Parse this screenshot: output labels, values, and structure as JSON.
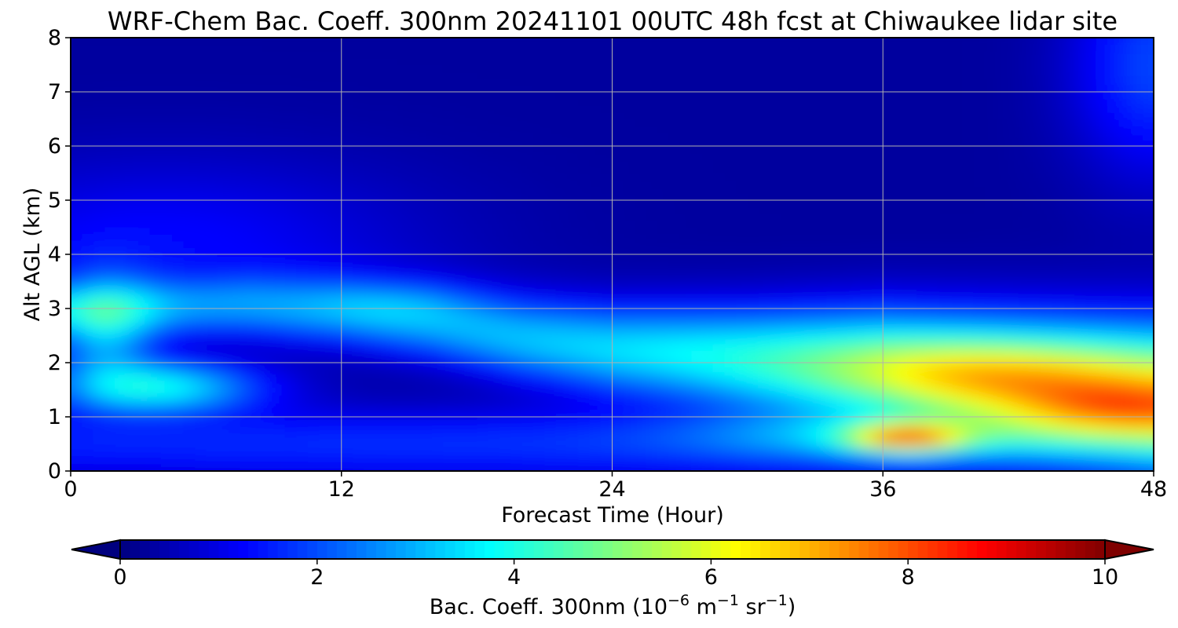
{
  "chart_data": {
    "type": "heatmap",
    "title": "WRF-Chem Bac. Coeff. 300nm  20241101 00UTC 48h fcst at Chiwaukee lidar site",
    "xlabel": "Forecast Time (Hour)",
    "ylabel": "Alt AGL (km)",
    "xlim": [
      0,
      48
    ],
    "ylim": [
      0,
      8
    ],
    "xticks": [
      0,
      12,
      24,
      36,
      48
    ],
    "yticks": [
      0,
      1,
      2,
      3,
      4,
      5,
      6,
      7,
      8
    ],
    "grid": true,
    "colormap": "jet",
    "colorbar": {
      "label_main": "Bac. Coeff. 300nm  (10",
      "label_exp1": "−6",
      "label_mid": " m",
      "label_exp2": "−1",
      "label_mid2": " sr",
      "label_exp3": "−1",
      "label_end": ")",
      "range": [
        0,
        10
      ],
      "ticks": [
        0,
        2,
        4,
        6,
        8,
        10
      ],
      "extend": "both",
      "orientation": "horizontal",
      "under_color": "#00007f",
      "over_color": "#7f0000"
    },
    "field_features": [
      {
        "kind": "background",
        "value": 0.3
      },
      {
        "kind": "near_surface_layer",
        "z": [
          0,
          1.0
        ],
        "value": 1.8,
        "note": "moderate blue"
      },
      {
        "kind": "plume",
        "t": [
          0.5,
          7.5
        ],
        "z": [
          1.0,
          2.0
        ],
        "value": 3.8,
        "note": "cyan"
      },
      {
        "kind": "plume",
        "t": [
          0.5,
          2
        ],
        "z": [
          2,
          3.5
        ],
        "value": 3.2
      },
      {
        "kind": "elevated_layer",
        "path": [
          [
            0,
            3.0
          ],
          [
            12,
            2.9
          ],
          [
            24,
            2.2
          ],
          [
            36,
            2.0
          ],
          [
            48,
            1.5
          ]
        ],
        "value": "3-6.5",
        "note": "band rising in intensity toward hour 48"
      },
      {
        "kind": "max",
        "t": 46.5,
        "z": 1.1,
        "value": 7.2,
        "note": "orange"
      },
      {
        "kind": "local_max",
        "t": 37,
        "z": 0.6,
        "value": 6.8,
        "note": "orange core"
      },
      {
        "kind": "upper_right",
        "t": [
          44,
          48
        ],
        "z": [
          5,
          8
        ],
        "value": 2.0
      }
    ]
  }
}
